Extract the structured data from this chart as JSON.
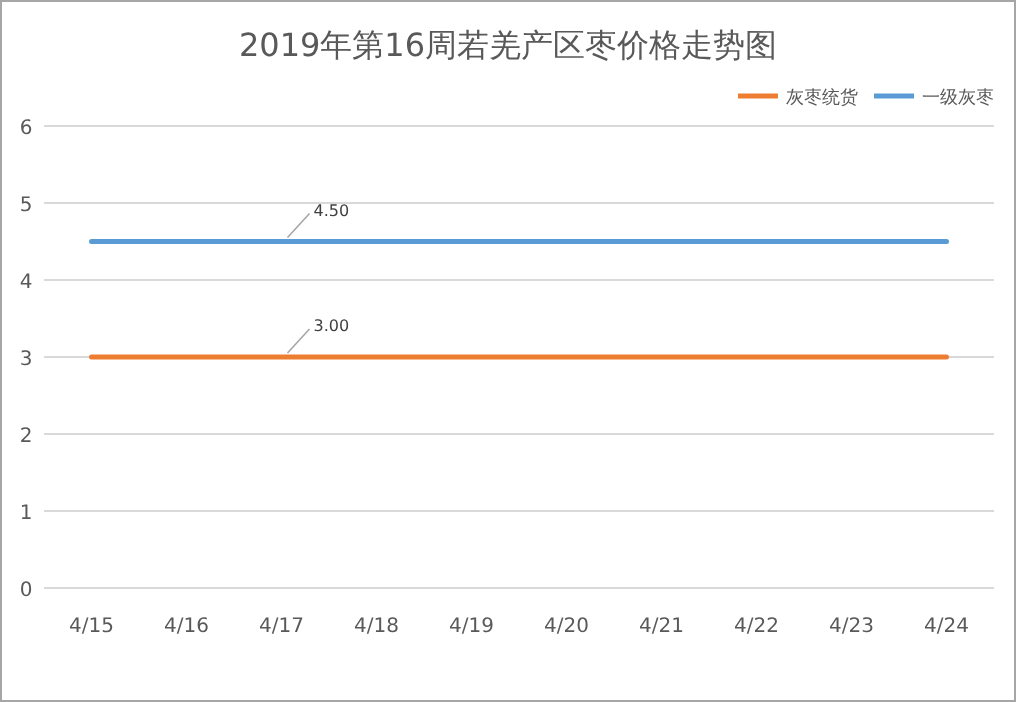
{
  "chart_data": {
    "type": "line",
    "title": "2019年第16周若羌产区枣价格走势图",
    "categories": [
      "4/15",
      "4/16",
      "4/17",
      "4/18",
      "4/19",
      "4/20",
      "4/21",
      "4/22",
      "4/23",
      "4/24"
    ],
    "series": [
      {
        "name": "灰枣统货",
        "color": "#ed7d31",
        "values": [
          3,
          3,
          3,
          3,
          3,
          3,
          3,
          3,
          3,
          3
        ],
        "value_labels": [
          null,
          null,
          "3.00",
          null,
          null,
          null,
          null,
          null,
          null,
          null
        ]
      },
      {
        "name": "一级灰枣",
        "color": "#5b9bd5",
        "values": [
          4.5,
          4.5,
          4.5,
          4.5,
          4.5,
          4.5,
          4.5,
          4.5,
          4.5,
          4.5
        ],
        "value_labels": [
          null,
          null,
          "4.50",
          null,
          null,
          null,
          null,
          null,
          null,
          null
        ]
      }
    ],
    "ylim": [
      0,
      6
    ],
    "yticks": [
      0,
      1,
      2,
      3,
      4,
      5,
      6
    ],
    "grid": "y",
    "legend": "top right",
    "marker": "none",
    "line_style": "solid"
  }
}
